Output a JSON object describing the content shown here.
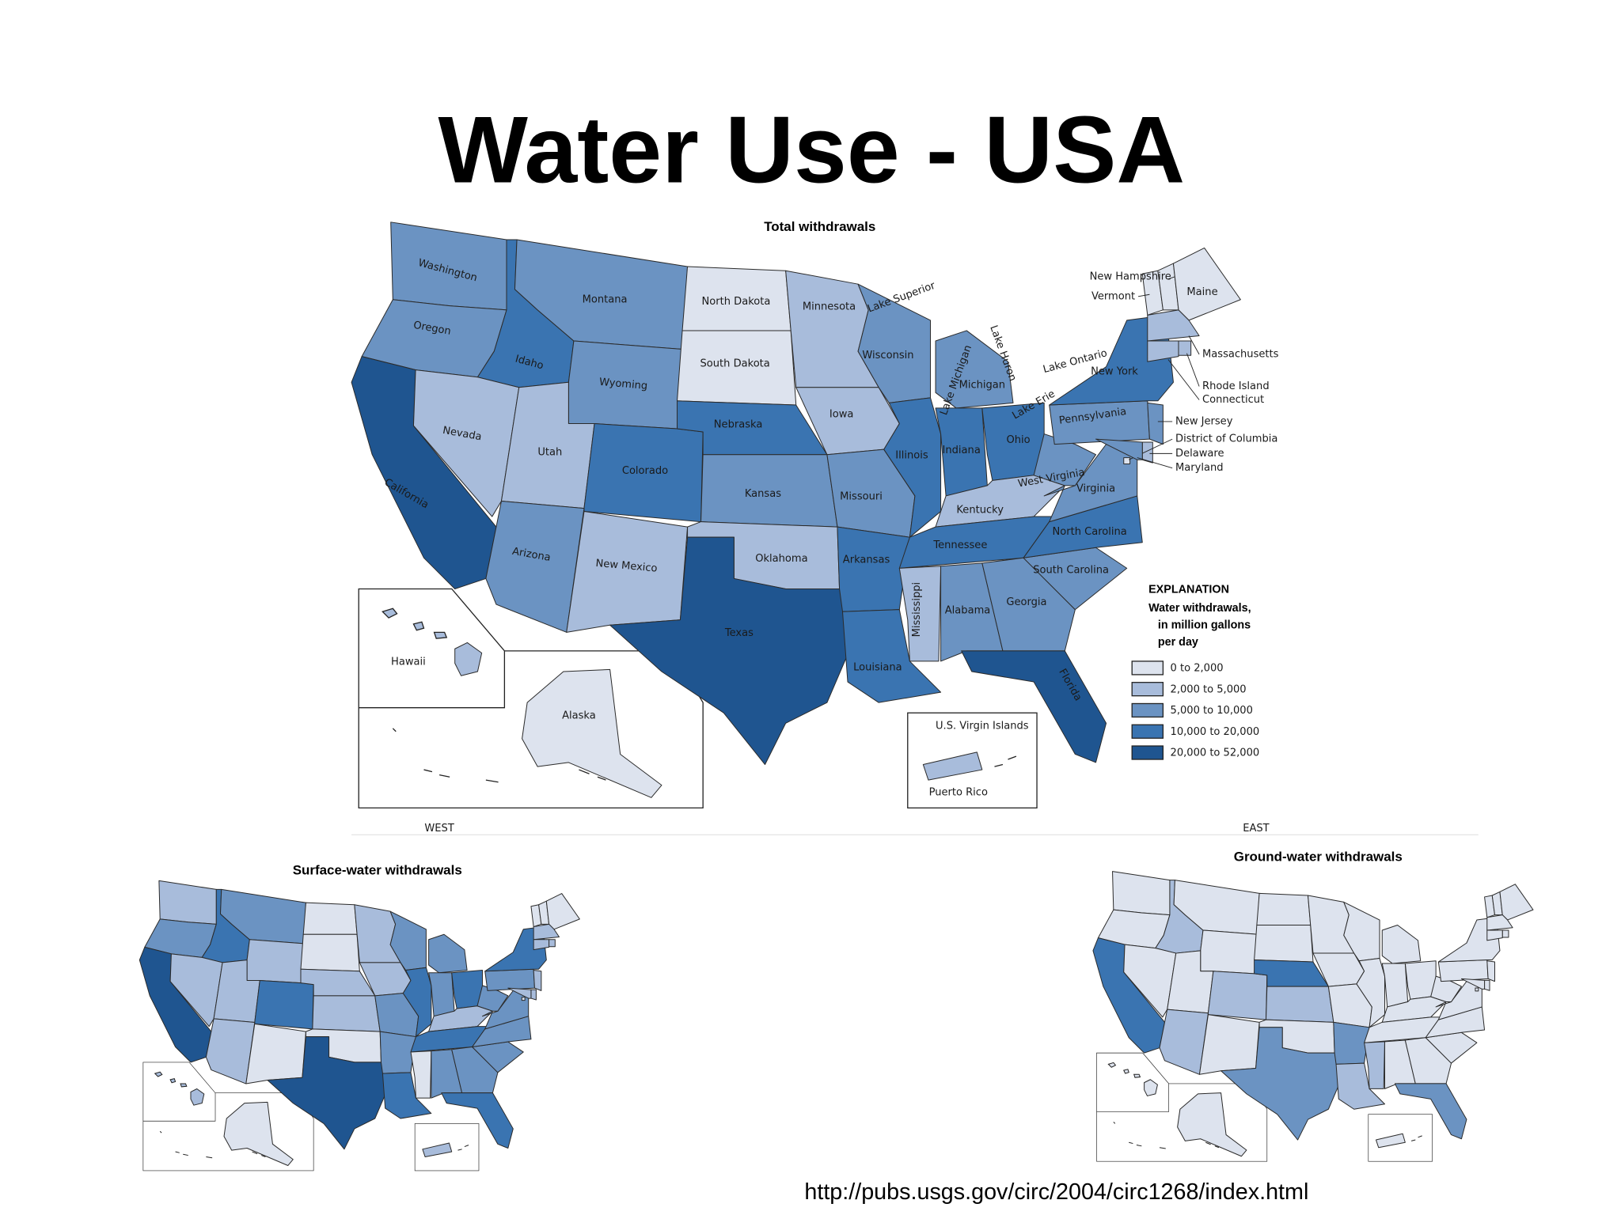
{
  "title": "Water Use - USA",
  "maps": [
    {
      "title": "Total withdrawals",
      "states": [
        {
          "name": "Washington",
          "class": 2
        },
        {
          "name": "Oregon",
          "class": 2
        },
        {
          "name": "California",
          "class": 4
        },
        {
          "name": "Idaho",
          "class": 3
        },
        {
          "name": "Nevada",
          "class": 1
        },
        {
          "name": "Montana",
          "class": 2
        },
        {
          "name": "Wyoming",
          "class": 2
        },
        {
          "name": "Utah",
          "class": 1
        },
        {
          "name": "Colorado",
          "class": 3
        },
        {
          "name": "Arizona",
          "class": 2
        },
        {
          "name": "New Mexico",
          "class": 1
        },
        {
          "name": "North Dakota",
          "class": 0
        },
        {
          "name": "South Dakota",
          "class": 0
        },
        {
          "name": "Nebraska",
          "class": 3
        },
        {
          "name": "Kansas",
          "class": 2
        },
        {
          "name": "Oklahoma",
          "class": 1
        },
        {
          "name": "Texas",
          "class": 4
        },
        {
          "name": "Minnesota",
          "class": 1
        },
        {
          "name": "Iowa",
          "class": 1
        },
        {
          "name": "Missouri",
          "class": 2
        },
        {
          "name": "Arkansas",
          "class": 3
        },
        {
          "name": "Louisiana",
          "class": 3
        },
        {
          "name": "Wisconsin",
          "class": 2
        },
        {
          "name": "Illinois",
          "class": 3
        },
        {
          "name": "Michigan",
          "class": 2
        },
        {
          "name": "Indiana",
          "class": 3
        },
        {
          "name": "Ohio",
          "class": 3
        },
        {
          "name": "Kentucky",
          "class": 1
        },
        {
          "name": "Tennessee",
          "class": 3
        },
        {
          "name": "Mississippi",
          "class": 1
        },
        {
          "name": "Alabama",
          "class": 2
        },
        {
          "name": "Georgia",
          "class": 2
        },
        {
          "name": "Florida",
          "class": 4
        },
        {
          "name": "South Carolina",
          "class": 2
        },
        {
          "name": "North Carolina",
          "class": 3
        },
        {
          "name": "Virginia",
          "class": 2
        },
        {
          "name": "West Virginia",
          "class": 2
        },
        {
          "name": "Pennsylvania",
          "class": 2
        },
        {
          "name": "New York",
          "class": 3
        },
        {
          "name": "New Jersey",
          "class": 2
        },
        {
          "name": "Delaware",
          "class": 1
        },
        {
          "name": "District of Columbia",
          "class": 0
        },
        {
          "name": "Maryland",
          "class": 2
        },
        {
          "name": "Vermont",
          "class": 0
        },
        {
          "name": "New Hampshire",
          "class": 0
        },
        {
          "name": "Maine",
          "class": 0
        },
        {
          "name": "Massachusetts",
          "class": 1
        },
        {
          "name": "Rhode Island",
          "class": 1
        },
        {
          "name": "Connecticut",
          "class": 1
        },
        {
          "name": "Hawaii",
          "class": 1
        },
        {
          "name": "Alaska",
          "class": 0
        },
        {
          "name": "Puerto Rico",
          "class": 1
        }
      ],
      "other_labels": [
        "Lake Superior",
        "Lake Michigan",
        "Lake Huron",
        "Lake Erie",
        "Lake Ontario",
        "U.S. Virgin Islands",
        "WEST",
        "EAST"
      ]
    },
    {
      "title": "Surface-water withdrawals",
      "classes": [
        1,
        2,
        4,
        3,
        1,
        2,
        1,
        1,
        3,
        1,
        0,
        0,
        0,
        1,
        1,
        0,
        4,
        1,
        1,
        2,
        2,
        3,
        2,
        3,
        2,
        2,
        3,
        1,
        3,
        0,
        2,
        2,
        3,
        2,
        2,
        2,
        2,
        2,
        3,
        1,
        1,
        0,
        1,
        0,
        0,
        0,
        1,
        1,
        1,
        1,
        0,
        1
      ]
    },
    {
      "title": "Ground-water withdrawals",
      "classes": [
        0,
        0,
        3,
        1,
        0,
        0,
        0,
        0,
        1,
        1,
        0,
        0,
        0,
        3,
        1,
        0,
        2,
        0,
        0,
        0,
        2,
        1,
        0,
        0,
        0,
        0,
        0,
        0,
        0,
        1,
        0,
        0,
        2,
        0,
        0,
        0,
        0,
        0,
        0,
        0,
        0,
        0,
        0,
        0,
        0,
        0,
        0,
        0,
        0,
        0,
        0,
        0
      ]
    }
  ],
  "legend": {
    "title": "EXPLANATION",
    "subtitle": [
      "Water withdrawals,",
      "in million gallons",
      "per day"
    ],
    "classes": [
      {
        "label": "0 to 2,000",
        "color": "#dde3ee"
      },
      {
        "label": "2,000 to 5,000",
        "color": "#a8bcdb"
      },
      {
        "label": "5,000 to 10,000",
        "color": "#6b93c2"
      },
      {
        "label": "10,000 to 20,000",
        "color": "#3a74b1"
      },
      {
        "label": "20,000 to 52,000",
        "color": "#1f5590"
      }
    ]
  },
  "source": "http://pubs.usgs.gov/circ/2004/circ1268/index.html"
}
